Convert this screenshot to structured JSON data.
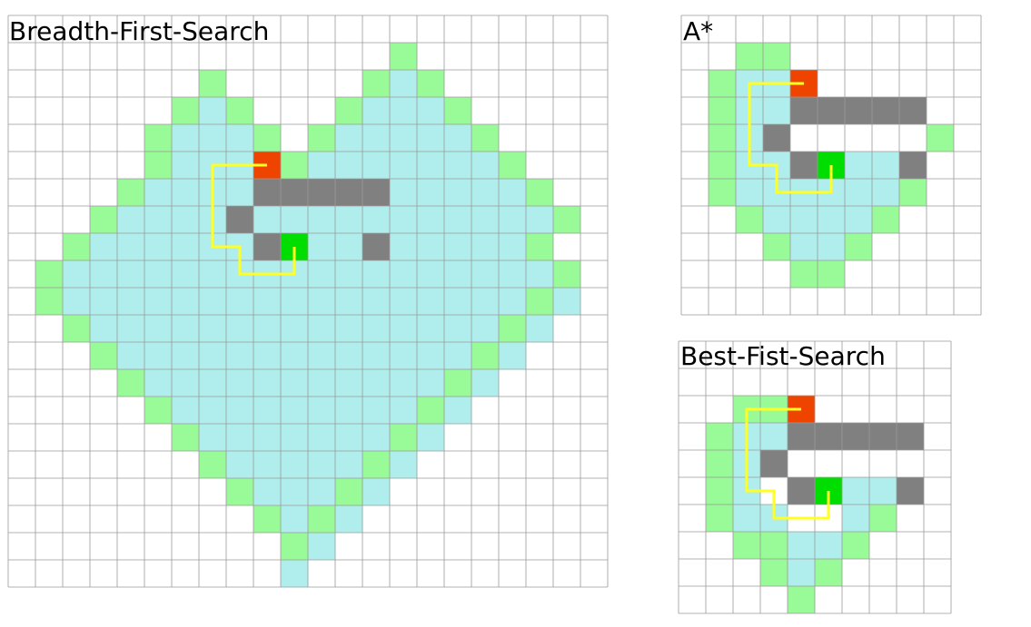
{
  "colors": {
    "grid_line": "#9a9a9a",
    "background": "#ffffff",
    "visited": "#b0eded",
    "frontier": "#98fb98",
    "wall": "#808080",
    "start": "#ee4400",
    "goal": "#00dd00",
    "path": "#ffff22"
  },
  "legend_semantics": {
    "visited": "explored cell",
    "frontier": "frontier cell",
    "wall": "obstacle",
    "start": "start",
    "goal": "goal",
    "path": "found path"
  },
  "panels": [
    {
      "id": "bfs",
      "title": "Breadth-First-Search",
      "cols": 22,
      "rows": 21,
      "start": [
        9,
        5
      ],
      "goal": [
        10,
        8
      ],
      "walls": [
        [
          9,
          6
        ],
        [
          10,
          6
        ],
        [
          11,
          6
        ],
        [
          12,
          6
        ],
        [
          13,
          6
        ],
        [
          8,
          7
        ],
        [
          9,
          8
        ],
        [
          13,
          8
        ]
      ],
      "frontier_rows": [
        [
          [
            14,
            14
          ]
        ],
        [
          [
            7,
            7
          ],
          [
            13,
            13
          ],
          [
            15,
            15
          ]
        ],
        [
          [
            6,
            6
          ],
          [
            8,
            8
          ],
          [
            12,
            12
          ],
          [
            16,
            16
          ]
        ],
        [
          [
            5,
            5
          ],
          [
            9,
            9
          ],
          [
            11,
            11
          ],
          [
            17,
            17
          ]
        ],
        [
          [
            5,
            5
          ],
          [
            10,
            10
          ],
          [
            18,
            18
          ]
        ],
        [
          [
            4,
            4
          ],
          [
            19,
            19
          ]
        ],
        [
          [
            3,
            3
          ],
          [
            20,
            20
          ]
        ],
        [
          [
            2,
            2
          ],
          [
            19,
            19
          ]
        ],
        [
          [
            1,
            1
          ],
          [
            20,
            20
          ]
        ],
        [
          [
            1,
            1
          ],
          [
            19,
            19
          ]
        ],
        [
          [
            2,
            2
          ],
          [
            18,
            18
          ]
        ],
        [
          [
            3,
            3
          ],
          [
            17,
            17
          ]
        ],
        [
          [
            4,
            4
          ],
          [
            16,
            16
          ]
        ],
        [
          [
            5,
            5
          ],
          [
            15,
            15
          ]
        ],
        [
          [
            6,
            6
          ],
          [
            14,
            14
          ]
        ],
        [
          [
            7,
            7
          ],
          [
            13,
            13
          ]
        ],
        [
          [
            8,
            8
          ],
          [
            12,
            12
          ]
        ],
        [
          [
            9,
            9
          ],
          [
            11,
            11
          ]
        ],
        [
          [
            10,
            10
          ]
        ]
      ],
      "visited_rows": [
        [],
        [
          [
            14,
            15
          ]
        ],
        [
          [
            7,
            7
          ],
          [
            13,
            15
          ]
        ],
        [
          [
            6,
            8
          ],
          [
            12,
            16
          ]
        ],
        [
          [
            6,
            9
          ],
          [
            11,
            17
          ]
        ],
        [
          [
            5,
            19
          ]
        ],
        [
          [
            4,
            20
          ]
        ],
        [
          [
            3,
            19
          ]
        ],
        [
          [
            2,
            20
          ]
        ],
        [
          [
            1,
            20
          ]
        ],
        [
          [
            2,
            19
          ]
        ],
        [
          [
            3,
            18
          ]
        ],
        [
          [
            4,
            17
          ]
        ],
        [
          [
            5,
            16
          ]
        ],
        [
          [
            6,
            15
          ]
        ],
        [
          [
            7,
            14
          ]
        ],
        [
          [
            8,
            13
          ]
        ],
        [
          [
            9,
            12
          ]
        ],
        [
          [
            10,
            11
          ]
        ],
        [
          [
            10,
            10
          ]
        ]
      ],
      "path": [
        [
          9.5,
          5.5
        ],
        [
          7.5,
          5.5
        ],
        [
          7.5,
          8.5
        ],
        [
          8.5,
          8.5
        ],
        [
          8.5,
          9.5
        ],
        [
          10.5,
          9.5
        ],
        [
          10.5,
          8.5
        ]
      ]
    },
    {
      "id": "astar",
      "title": "A*",
      "cols": 11,
      "rows": 11,
      "start": [
        4,
        2
      ],
      "goal": [
        5,
        5
      ],
      "walls": [
        [
          4,
          3
        ],
        [
          5,
          3
        ],
        [
          6,
          3
        ],
        [
          7,
          3
        ],
        [
          8,
          3
        ],
        [
          3,
          4
        ],
        [
          4,
          5
        ],
        [
          8,
          5
        ]
      ],
      "frontier_rows": [
        [
          [
            2,
            3
          ]
        ],
        [
          [
            1,
            1
          ]
        ],
        [
          [
            1,
            1
          ]
        ],
        [
          [
            1,
            1
          ],
          [
            9,
            9
          ]
        ],
        [
          [
            1,
            1
          ]
        ],
        [
          [
            1,
            1
          ],
          [
            8,
            8
          ]
        ],
        [
          [
            2,
            2
          ],
          [
            7,
            7
          ]
        ],
        [
          [
            3,
            3
          ],
          [
            6,
            6
          ]
        ],
        [
          [
            4,
            5
          ]
        ]
      ],
      "visited_rows": [
        [],
        [
          [
            2,
            3
          ]
        ],
        [
          [
            2,
            3
          ]
        ],
        [
          [
            2,
            3
          ]
        ],
        [
          [
            2,
            8
          ]
        ],
        [
          [
            2,
            7
          ]
        ],
        [
          [
            2,
            7
          ]
        ],
        [
          [
            3,
            6
          ]
        ],
        [
          [
            4,
            5
          ]
        ]
      ],
      "path": [
        [
          4.5,
          2.5
        ],
        [
          2.5,
          2.5
        ],
        [
          2.5,
          5.5
        ],
        [
          3.5,
          5.5
        ],
        [
          3.5,
          6.5
        ],
        [
          5.5,
          6.5
        ],
        [
          5.5,
          5.5
        ]
      ]
    },
    {
      "id": "bestfirst",
      "title": "Best-Fist-Search",
      "cols": 10,
      "rows": 10,
      "start": [
        4,
        2
      ],
      "goal": [
        5,
        5
      ],
      "walls": [
        [
          4,
          3
        ],
        [
          5,
          3
        ],
        [
          6,
          3
        ],
        [
          7,
          3
        ],
        [
          8,
          3
        ],
        [
          3,
          4
        ],
        [
          4,
          5
        ],
        [
          8,
          5
        ]
      ],
      "frontier_rows": [
        [],
        [
          [
            2,
            3
          ]
        ],
        [
          [
            1,
            1
          ]
        ],
        [
          [
            1,
            1
          ],
          [
            3,
            3
          ]
        ],
        [
          [
            1,
            1
          ],
          [
            8,
            8
          ]
        ],
        [
          [
            1,
            1
          ],
          [
            7,
            7
          ]
        ],
        [
          [
            2,
            3
          ],
          [
            6,
            6
          ]
        ],
        [
          [
            3,
            3
          ],
          [
            5,
            5
          ]
        ],
        [
          [
            4,
            4
          ]
        ]
      ],
      "visited_rows": [
        [],
        [],
        [
          [
            2,
            3
          ]
        ],
        [
          [
            2,
            2
          ]
        ],
        [
          [
            2,
            2
          ],
          [
            4,
            7
          ]
        ],
        [
          [
            2,
            3
          ],
          [
            6,
            6
          ]
        ],
        [
          [
            4,
            5
          ]
        ],
        [
          [
            4,
            4
          ]
        ],
        []
      ],
      "path": [
        [
          4.5,
          2.5
        ],
        [
          2.5,
          2.5
        ],
        [
          2.5,
          5.5
        ],
        [
          3.5,
          5.5
        ],
        [
          3.5,
          6.5
        ],
        [
          5.5,
          6.5
        ],
        [
          5.5,
          5.5
        ]
      ]
    }
  ]
}
